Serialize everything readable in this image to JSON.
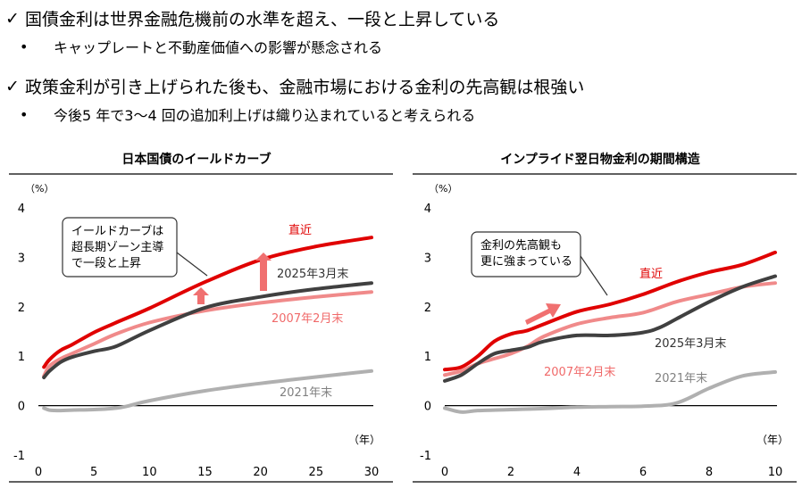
{
  "bullets": [
    {
      "icon": "check-icon",
      "text": "国債金利は世界金融危機前の水準を超え、一段と上昇している",
      "sub": "キャップレートと不動産価値への影響が懸念される"
    },
    {
      "icon": "check-icon",
      "text": "政策金利が引き上げられた後も、金融市場における金利の先高観は根強い",
      "sub": "今後5 年で3〜4 回の追加利上げは織り込まれていると考えられる"
    }
  ],
  "colors": {
    "latest": "#e00000",
    "y2025": "#404040",
    "y2007": "#f08a8a",
    "y2021": "#b0b0b0",
    "arrow": "#f07070"
  },
  "chart_data": [
    {
      "type": "line",
      "title": "日本国債のイールドカーブ",
      "ylabel": "（%）",
      "xlabel": "（年）",
      "xlim": [
        0,
        30
      ],
      "ylim": [
        -1,
        4
      ],
      "xticks": [
        0,
        5,
        10,
        15,
        20,
        25,
        30
      ],
      "yticks": [
        -1,
        0,
        1,
        2,
        3,
        4
      ],
      "annotation": "イールドカーブは\n超長期ゾーン主導\nで一段と上昇",
      "series": [
        {
          "name": "直近",
          "color": "#e00000",
          "x": [
            0.5,
            1,
            2,
            3,
            5,
            7,
            10,
            15,
            20,
            25,
            30
          ],
          "y": [
            0.78,
            0.93,
            1.12,
            1.23,
            1.48,
            1.68,
            1.97,
            2.5,
            2.95,
            3.22,
            3.4
          ]
        },
        {
          "name": "2025年3月末",
          "color": "#404040",
          "x": [
            0.5,
            1,
            2,
            3,
            5,
            7,
            10,
            15,
            20,
            25,
            30
          ],
          "y": [
            0.57,
            0.7,
            0.88,
            0.98,
            1.1,
            1.2,
            1.52,
            1.98,
            2.2,
            2.36,
            2.48
          ]
        },
        {
          "name": "2007年2月末",
          "color": "#f08a8a",
          "x": [
            0.5,
            1,
            2,
            3,
            5,
            7,
            10,
            15,
            20,
            25,
            30
          ],
          "y": [
            0.6,
            0.8,
            0.95,
            1.05,
            1.25,
            1.45,
            1.68,
            1.92,
            2.08,
            2.2,
            2.3
          ]
        },
        {
          "name": "2021年末",
          "color": "#b0b0b0",
          "x": [
            0.5,
            1,
            2,
            3,
            5,
            7,
            8,
            10,
            15,
            20,
            25,
            30
          ],
          "y": [
            -0.05,
            -0.09,
            -0.1,
            -0.09,
            -0.08,
            -0.05,
            -0.01,
            0.1,
            0.3,
            0.45,
            0.58,
            0.7
          ]
        }
      ]
    },
    {
      "type": "line",
      "title": "インプライド翌日物金利の期間構造",
      "ylabel": "（%）",
      "xlabel": "（年）",
      "xlim": [
        0,
        10
      ],
      "ylim": [
        -1,
        4
      ],
      "xticks": [
        0,
        2,
        4,
        6,
        8,
        10
      ],
      "yticks": [
        -1,
        0,
        1,
        2,
        3,
        4
      ],
      "annotation": "金利の先高観も\n更に強まっている",
      "series": [
        {
          "name": "直近",
          "color": "#e00000",
          "x": [
            0,
            0.5,
            1,
            1.5,
            2,
            2.5,
            3,
            4,
            5,
            6,
            7,
            8,
            9,
            10
          ],
          "y": [
            0.73,
            0.78,
            1.0,
            1.3,
            1.45,
            1.52,
            1.65,
            1.9,
            2.05,
            2.25,
            2.5,
            2.7,
            2.85,
            3.1
          ]
        },
        {
          "name": "2025年3月末",
          "color": "#404040",
          "x": [
            0,
            0.5,
            1,
            1.5,
            2,
            2.5,
            3,
            4,
            5,
            6,
            6.5,
            7,
            8,
            9,
            10
          ],
          "y": [
            0.5,
            0.62,
            0.85,
            1.05,
            1.12,
            1.18,
            1.3,
            1.42,
            1.42,
            1.48,
            1.58,
            1.75,
            2.1,
            2.4,
            2.62
          ]
        },
        {
          "name": "2007年2月末",
          "color": "#f08a8a",
          "x": [
            0,
            0.5,
            1,
            1.5,
            2,
            2.5,
            3,
            4,
            5,
            6,
            7,
            8,
            9,
            10
          ],
          "y": [
            0.62,
            0.7,
            0.85,
            0.95,
            1.05,
            1.2,
            1.4,
            1.65,
            1.78,
            1.88,
            2.1,
            2.25,
            2.4,
            2.48
          ]
        },
        {
          "name": "2021年末",
          "color": "#b0b0b0",
          "x": [
            0,
            0.5,
            1,
            2,
            3,
            4,
            5,
            6,
            7,
            8,
            9,
            10
          ],
          "y": [
            -0.05,
            -0.13,
            -0.1,
            -0.08,
            -0.06,
            -0.03,
            -0.02,
            -0.01,
            0.05,
            0.35,
            0.6,
            0.68
          ]
        }
      ]
    }
  ]
}
